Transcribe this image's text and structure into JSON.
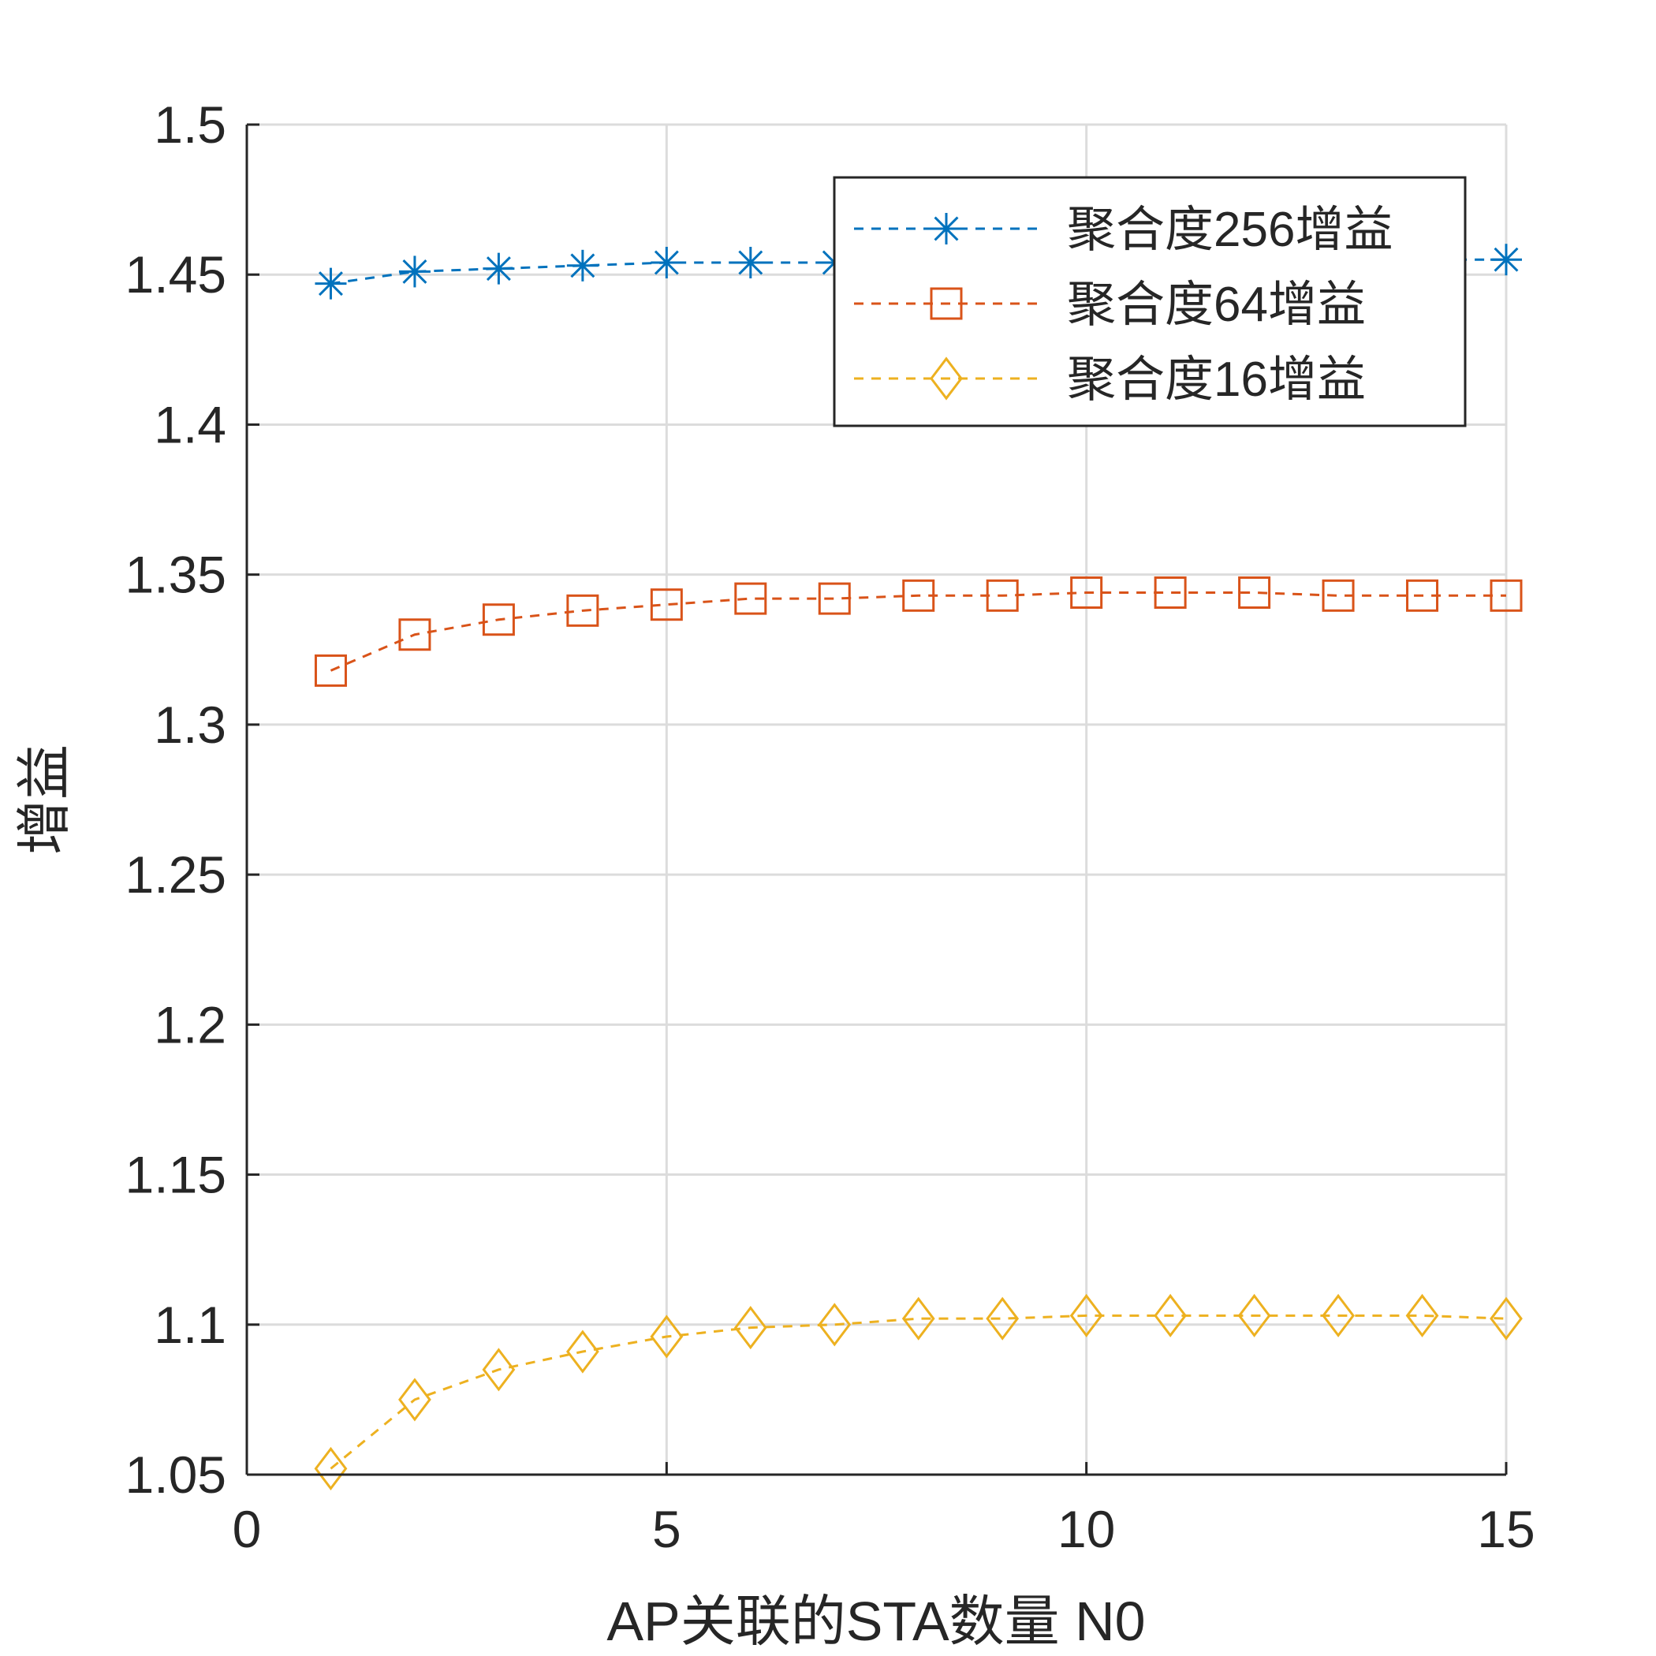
{
  "chart_data": {
    "type": "line",
    "xlabel": "AP关联的STA数量 N0",
    "ylabel": "增益",
    "xlim": [
      0,
      15
    ],
    "ylim": [
      1.05,
      1.5
    ],
    "xticks": [
      0,
      5,
      10,
      15
    ],
    "yticks": [
      1.05,
      1.1,
      1.15,
      1.2,
      1.25,
      1.3,
      1.35,
      1.4,
      1.45,
      1.5
    ],
    "x_tick_labels": [
      "0",
      "5",
      "10",
      "15"
    ],
    "y_tick_labels": [
      "1.05",
      "1.1",
      "1.15",
      "1.2",
      "1.25",
      "1.3",
      "1.35",
      "1.4",
      "1.45",
      "1.5"
    ],
    "grid": true,
    "legend_position": "top-right",
    "x": [
      1,
      2,
      3,
      4,
      5,
      6,
      7,
      8,
      9,
      10,
      11,
      12,
      13,
      14,
      15
    ],
    "series": [
      {
        "name": "聚合度256增益",
        "marker": "asterisk",
        "line_style": "dashed",
        "color": "#0072BD",
        "values": [
          1.447,
          1.451,
          1.452,
          1.453,
          1.454,
          1.454,
          1.454,
          1.455,
          1.455,
          1.455,
          1.455,
          1.455,
          1.455,
          1.455,
          1.455
        ]
      },
      {
        "name": "聚合度64增益",
        "marker": "square",
        "line_style": "dashed",
        "color": "#D95319",
        "values": [
          1.318,
          1.33,
          1.335,
          1.338,
          1.34,
          1.342,
          1.342,
          1.343,
          1.343,
          1.344,
          1.344,
          1.344,
          1.343,
          1.343,
          1.343
        ]
      },
      {
        "name": "聚合度16增益",
        "marker": "diamond",
        "line_style": "dashed",
        "color": "#EDB120",
        "values": [
          1.052,
          1.075,
          1.085,
          1.091,
          1.096,
          1.099,
          1.1,
          1.102,
          1.102,
          1.103,
          1.103,
          1.103,
          1.103,
          1.103,
          1.102
        ]
      }
    ]
  }
}
